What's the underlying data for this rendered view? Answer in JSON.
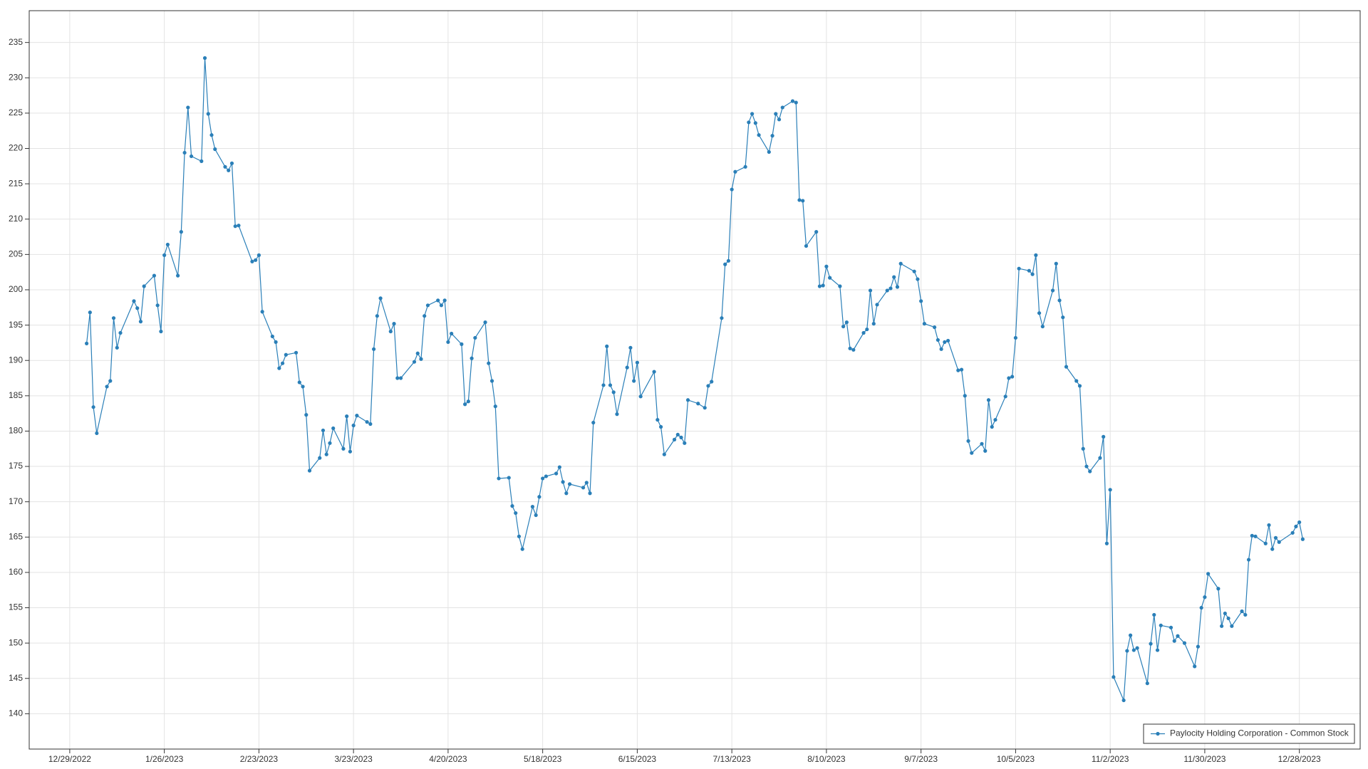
{
  "chart_data": {
    "type": "line",
    "x": [
      "2023-01-03",
      "2023-01-04",
      "2023-01-05",
      "2023-01-06",
      "2023-01-09",
      "2023-01-10",
      "2023-01-11",
      "2023-01-12",
      "2023-01-13",
      "2023-01-17",
      "2023-01-18",
      "2023-01-19",
      "2023-01-20",
      "2023-01-23",
      "2023-01-24",
      "2023-01-25",
      "2023-01-26",
      "2023-01-27",
      "2023-01-30",
      "2023-01-31",
      "2023-02-01",
      "2023-02-02",
      "2023-02-03",
      "2023-02-06",
      "2023-02-07",
      "2023-02-08",
      "2023-02-09",
      "2023-02-10",
      "2023-02-13",
      "2023-02-14",
      "2023-02-15",
      "2023-02-16",
      "2023-02-17",
      "2023-02-21",
      "2023-02-22",
      "2023-02-23",
      "2023-02-24",
      "2023-02-27",
      "2023-02-28",
      "2023-03-01",
      "2023-03-02",
      "2023-03-03",
      "2023-03-06",
      "2023-03-07",
      "2023-03-08",
      "2023-03-09",
      "2023-03-10",
      "2023-03-13",
      "2023-03-14",
      "2023-03-15",
      "2023-03-16",
      "2023-03-17",
      "2023-03-20",
      "2023-03-21",
      "2023-03-22",
      "2023-03-23",
      "2023-03-24",
      "2023-03-27",
      "2023-03-28",
      "2023-03-29",
      "2023-03-30",
      "2023-03-31",
      "2023-04-03",
      "2023-04-04",
      "2023-04-05",
      "2023-04-06",
      "2023-04-10",
      "2023-04-11",
      "2023-04-12",
      "2023-04-13",
      "2023-04-14",
      "2023-04-17",
      "2023-04-18",
      "2023-04-19",
      "2023-04-20",
      "2023-04-21",
      "2023-04-24",
      "2023-04-25",
      "2023-04-26",
      "2023-04-27",
      "2023-04-28",
      "2023-05-01",
      "2023-05-02",
      "2023-05-03",
      "2023-05-04",
      "2023-05-05",
      "2023-05-08",
      "2023-05-09",
      "2023-05-10",
      "2023-05-11",
      "2023-05-12",
      "2023-05-15",
      "2023-05-16",
      "2023-05-17",
      "2023-05-18",
      "2023-05-19",
      "2023-05-22",
      "2023-05-23",
      "2023-05-24",
      "2023-05-25",
      "2023-05-26",
      "2023-05-30",
      "2023-05-31",
      "2023-06-01",
      "2023-06-02",
      "2023-06-05",
      "2023-06-06",
      "2023-06-07",
      "2023-06-08",
      "2023-06-09",
      "2023-06-12",
      "2023-06-13",
      "2023-06-14",
      "2023-06-15",
      "2023-06-16",
      "2023-06-20",
      "2023-06-21",
      "2023-06-22",
      "2023-06-23",
      "2023-06-26",
      "2023-06-27",
      "2023-06-28",
      "2023-06-29",
      "2023-06-30",
      "2023-07-03",
      "2023-07-05",
      "2023-07-06",
      "2023-07-07",
      "2023-07-10",
      "2023-07-11",
      "2023-07-12",
      "2023-07-13",
      "2023-07-14",
      "2023-07-17",
      "2023-07-18",
      "2023-07-19",
      "2023-07-20",
      "2023-07-21",
      "2023-07-24",
      "2023-07-25",
      "2023-07-26",
      "2023-07-27",
      "2023-07-28",
      "2023-07-31",
      "2023-08-01",
      "2023-08-02",
      "2023-08-03",
      "2023-08-04",
      "2023-08-07",
      "2023-08-08",
      "2023-08-09",
      "2023-08-10",
      "2023-08-11",
      "2023-08-14",
      "2023-08-15",
      "2023-08-16",
      "2023-08-17",
      "2023-08-18",
      "2023-08-21",
      "2023-08-22",
      "2023-08-23",
      "2023-08-24",
      "2023-08-25",
      "2023-08-28",
      "2023-08-29",
      "2023-08-30",
      "2023-08-31",
      "2023-09-01",
      "2023-09-05",
      "2023-09-06",
      "2023-09-07",
      "2023-09-08",
      "2023-09-11",
      "2023-09-12",
      "2023-09-13",
      "2023-09-14",
      "2023-09-15",
      "2023-09-18",
      "2023-09-19",
      "2023-09-20",
      "2023-09-21",
      "2023-09-22",
      "2023-09-25",
      "2023-09-26",
      "2023-09-27",
      "2023-09-28",
      "2023-09-29",
      "2023-10-02",
      "2023-10-03",
      "2023-10-04",
      "2023-10-05",
      "2023-10-06",
      "2023-10-09",
      "2023-10-10",
      "2023-10-11",
      "2023-10-12",
      "2023-10-13",
      "2023-10-16",
      "2023-10-17",
      "2023-10-18",
      "2023-10-19",
      "2023-10-20",
      "2023-10-23",
      "2023-10-24",
      "2023-10-25",
      "2023-10-26",
      "2023-10-27",
      "2023-10-30",
      "2023-10-31",
      "2023-11-01",
      "2023-11-02",
      "2023-11-03",
      "2023-11-06",
      "2023-11-07",
      "2023-11-08",
      "2023-11-09",
      "2023-11-10",
      "2023-11-13",
      "2023-11-14",
      "2023-11-15",
      "2023-11-16",
      "2023-11-17",
      "2023-11-20",
      "2023-11-21",
      "2023-11-22",
      "2023-11-24",
      "2023-11-27",
      "2023-11-28",
      "2023-11-29",
      "2023-11-30",
      "2023-12-01",
      "2023-12-04",
      "2023-12-05",
      "2023-12-06",
      "2023-12-07",
      "2023-12-08",
      "2023-12-11",
      "2023-12-12",
      "2023-12-13",
      "2023-12-14",
      "2023-12-15",
      "2023-12-18",
      "2023-12-19",
      "2023-12-20",
      "2023-12-21",
      "2023-12-22",
      "2023-12-26",
      "2023-12-27",
      "2023-12-28",
      "2023-12-29"
    ],
    "series": [
      {
        "name": "Paylocity Holding Corporation - Common Stock",
        "color": "#2a7fb8",
        "values": [
          192.4,
          196.8,
          183.4,
          179.7,
          186.3,
          187.1,
          196.0,
          191.8,
          193.9,
          198.4,
          197.4,
          195.5,
          200.5,
          202.0,
          197.8,
          194.1,
          204.9,
          206.4,
          202.0,
          208.2,
          219.4,
          225.8,
          218.9,
          218.2,
          232.8,
          224.9,
          221.9,
          219.9,
          217.4,
          216.9,
          217.9,
          209.0,
          209.1,
          204.0,
          204.2,
          204.9,
          196.9,
          193.4,
          192.6,
          188.9,
          189.6,
          190.8,
          191.1,
          186.9,
          186.3,
          182.3,
          174.4,
          176.2,
          180.1,
          176.7,
          178.3,
          180.4,
          177.5,
          182.1,
          177.1,
          180.8,
          182.2,
          181.3,
          181.0,
          191.6,
          196.3,
          198.8,
          194.1,
          195.2,
          187.5,
          187.5,
          189.8,
          191.0,
          190.2,
          196.3,
          197.8,
          198.5,
          197.8,
          198.5,
          192.6,
          193.8,
          192.3,
          183.8,
          184.2,
          190.3,
          193.2,
          195.4,
          189.6,
          187.1,
          183.5,
          173.3,
          173.4,
          169.4,
          168.4,
          165.1,
          163.3,
          169.3,
          168.1,
          170.7,
          173.3,
          173.6,
          174.0,
          174.9,
          172.8,
          171.2,
          172.5,
          172.0,
          172.7,
          171.2,
          181.2,
          186.5,
          192.0,
          186.5,
          185.5,
          182.4,
          189.0,
          191.8,
          187.1,
          189.7,
          184.9,
          188.4,
          181.6,
          180.6,
          176.7,
          178.8,
          179.5,
          179.1,
          178.3,
          184.4,
          183.9,
          183.3,
          186.4,
          187.0,
          196.0,
          203.6,
          204.1,
          214.2,
          216.7,
          217.4,
          223.7,
          224.9,
          223.6,
          221.9,
          219.5,
          221.8,
          224.9,
          224.1,
          225.8,
          226.7,
          226.5,
          212.7,
          212.6,
          206.2,
          208.2,
          200.5,
          200.6,
          203.3,
          201.7,
          200.5,
          194.8,
          195.4,
          191.7,
          191.5,
          193.9,
          194.4,
          199.9,
          195.2,
          197.9,
          199.9,
          200.2,
          201.8,
          200.4,
          203.7,
          202.6,
          201.5,
          198.4,
          195.2,
          194.7,
          192.9,
          191.6,
          192.6,
          192.8,
          188.6,
          188.7,
          185.0,
          178.6,
          176.9,
          178.2,
          177.2,
          184.4,
          180.6,
          181.6,
          184.9,
          187.5,
          187.7,
          193.2,
          203.0,
          202.7,
          202.2,
          204.9,
          196.7,
          194.8,
          199.9,
          203.7,
          198.5,
          196.1,
          189.1,
          187.1,
          186.4,
          177.5,
          175.0,
          174.3,
          176.2,
          179.2,
          164.1,
          171.7,
          145.2,
          141.9,
          148.9,
          151.1,
          149.0,
          149.3,
          144.3,
          149.9,
          154.0,
          149.0,
          152.5,
          152.2,
          150.3,
          151.0,
          150.0,
          146.7,
          149.5,
          155.0,
          156.5,
          159.8,
          157.7,
          152.4,
          154.2,
          153.5,
          152.4,
          154.5,
          154.0,
          161.8,
          165.2,
          165.1,
          164.1,
          166.7,
          163.3,
          164.9,
          164.3,
          165.6,
          166.5,
          167.1,
          164.7
        ]
      }
    ],
    "xlim": [
      "2022-12-17",
      "2024-01-15"
    ],
    "xticks": [
      {
        "value": "2022-12-29",
        "label": "12/29/2022"
      },
      {
        "value": "2023-01-26",
        "label": "1/26/2023"
      },
      {
        "value": "2023-02-23",
        "label": "2/23/2023"
      },
      {
        "value": "2023-03-23",
        "label": "3/23/2023"
      },
      {
        "value": "2023-04-20",
        "label": "4/20/2023"
      },
      {
        "value": "2023-05-18",
        "label": "5/18/2023"
      },
      {
        "value": "2023-06-15",
        "label": "6/15/2023"
      },
      {
        "value": "2023-07-13",
        "label": "7/13/2023"
      },
      {
        "value": "2023-08-10",
        "label": "8/10/2023"
      },
      {
        "value": "2023-09-07",
        "label": "9/7/2023"
      },
      {
        "value": "2023-10-05",
        "label": "10/5/2023"
      },
      {
        "value": "2023-11-02",
        "label": "11/2/2023"
      },
      {
        "value": "2023-11-30",
        "label": "11/30/2023"
      },
      {
        "value": "2023-12-28",
        "label": "12/28/2023"
      }
    ],
    "ylim": [
      135,
      239.5
    ],
    "yticks": [
      140,
      145,
      150,
      155,
      160,
      165,
      170,
      175,
      180,
      185,
      190,
      195,
      200,
      205,
      210,
      215,
      220,
      225,
      230,
      235
    ],
    "grid": true,
    "legend": "bottom-right"
  }
}
